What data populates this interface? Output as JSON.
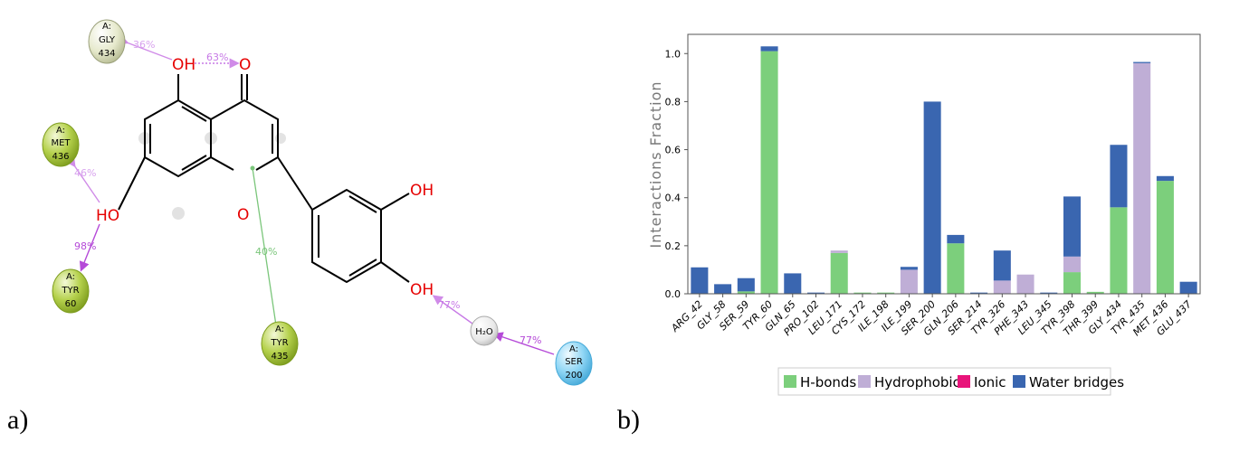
{
  "panel_a": {
    "label": "a)",
    "atom_labels": {
      "oh_top": "OH",
      "o_carbonyl": "O",
      "ho_left": "HO",
      "o_ring": "O",
      "oh_right_top": "OH",
      "oh_right_bottom": "OH"
    },
    "water": "H₂O",
    "residues": {
      "gly434": [
        "A:",
        "GLY",
        "434"
      ],
      "met436": [
        "A:",
        "MET",
        "436"
      ],
      "tyr60": [
        "A:",
        "TYR",
        "60"
      ],
      "tyr435": [
        "A:",
        "TYR",
        "435"
      ],
      "ser200": [
        "A:",
        "SER",
        "200"
      ]
    },
    "interactions": {
      "gly434_oh": "36%",
      "oh_carbonyl": "63%",
      "met436_ho": "46%",
      "ho_tyr60": "98%",
      "tyr435_ring": "40%",
      "water_oh": "77%",
      "ser200_water": "77%"
    },
    "colors": {
      "residue_green": "#a6c93a",
      "residue_pale": "#d8ddb6",
      "residue_blue": "#6fc7ee",
      "hbond_side_chain": "#c779e6",
      "hbond_backbone": "#b54ad8",
      "pi_stack": "#7bc67b",
      "heteroatom": "#e60000"
    }
  },
  "panel_b": {
    "label": "b)",
    "chart_data": {
      "type": "bar",
      "stacked": true,
      "ylabel": "Interactions Fraction",
      "ylim": [
        0,
        1.08
      ],
      "yticks": [
        "0.0",
        "0.2",
        "0.4",
        "0.6",
        "0.8",
        "1.0"
      ],
      "categories": [
        "ARG_42",
        "GLY_58",
        "SER_59",
        "TYR_60",
        "GLN_65",
        "PRO_102",
        "LEU_171",
        "CYS_172",
        "ILE_198",
        "ILE_199",
        "SER_200",
        "GLN_206",
        "SER_214",
        "TYR_326",
        "PHE_343",
        "LEU_345",
        "TYR_398",
        "THR_399",
        "GLY_434",
        "TYR_435",
        "MET_436",
        "GLU_437"
      ],
      "series": [
        {
          "name": "H-bonds",
          "color": "#7ccf7c",
          "values": [
            0,
            0,
            0.01,
            1.01,
            0,
            0,
            0.17,
            0.005,
            0.005,
            0,
            0,
            0.21,
            0,
            0,
            0,
            0,
            0.09,
            0.008,
            0.36,
            0,
            0.47,
            0
          ]
        },
        {
          "name": "Hydrophobic",
          "color": "#bfaed6",
          "values": [
            0,
            0,
            0,
            0,
            0,
            0,
            0.01,
            0,
            0,
            0.1,
            0,
            0,
            0,
            0.055,
            0.08,
            0,
            0.065,
            0,
            0,
            0.96,
            0,
            0
          ]
        },
        {
          "name": "Ionic",
          "color": "#e8147a",
          "values": [
            0,
            0,
            0,
            0,
            0,
            0,
            0,
            0,
            0,
            0,
            0,
            0,
            0,
            0,
            0,
            0,
            0,
            0,
            0,
            0,
            0,
            0
          ]
        },
        {
          "name": "Water bridges",
          "color": "#3a66b0",
          "values": [
            0.11,
            0.04,
            0.055,
            0.02,
            0.085,
            0.005,
            0,
            0,
            0,
            0.012,
            0.8,
            0.035,
            0.005,
            0.125,
            0,
            0.005,
            0.25,
            0,
            0.26,
            0.005,
            0.02,
            0.05
          ]
        }
      ],
      "legend_position": "bottom-center",
      "grid": false
    }
  }
}
